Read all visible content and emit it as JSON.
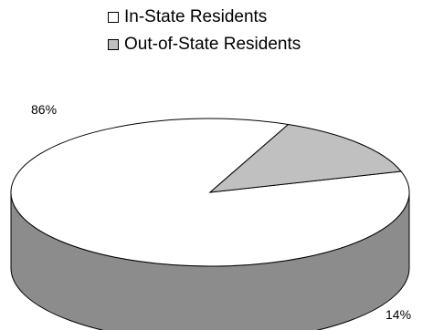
{
  "chart_data": {
    "type": "pie",
    "style": "3d",
    "categories": [
      "In-State Residents",
      "Out-of-State Residents"
    ],
    "values": [
      86,
      14
    ],
    "labels": [
      "86%",
      "14%"
    ],
    "colors": [
      "#ffffff",
      "#c0c0c0"
    ],
    "side_colors": [
      "#8c8c8c",
      "#6e6e6e"
    ],
    "legend_position": "top"
  }
}
